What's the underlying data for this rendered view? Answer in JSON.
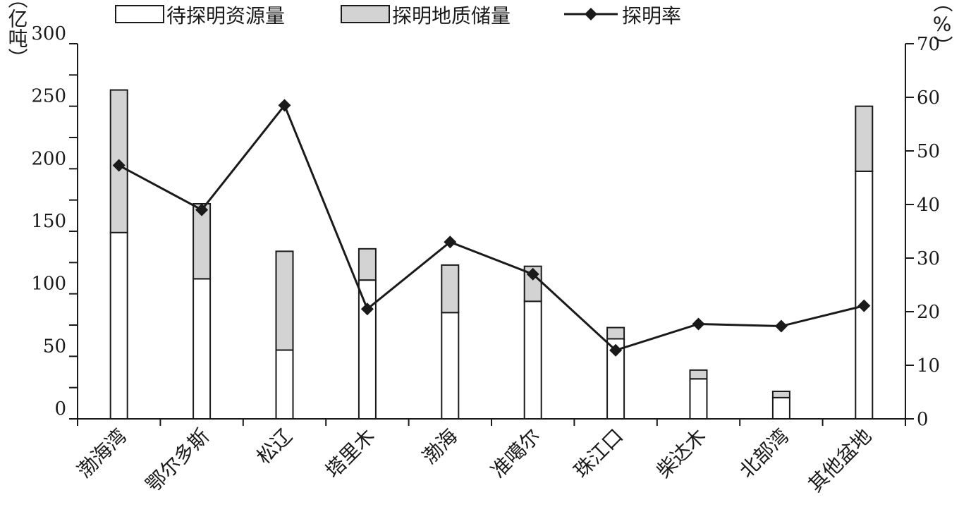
{
  "chart_data": {
    "type": "bar",
    "stacked": true,
    "categories": [
      "渤海湾",
      "鄂尔多斯",
      "松辽",
      "塔里木",
      "渤海",
      "准噶尔",
      "珠江口",
      "柴达木",
      "北部湾",
      "其他盆地"
    ],
    "series": [
      {
        "name": "待探明资源量",
        "kind": "bar",
        "axis": "left",
        "color": "#ffffff",
        "values": [
          149,
          112,
          55,
          111,
          85,
          94,
          64,
          32,
          17,
          198
        ]
      },
      {
        "name": "探明地质储量",
        "kind": "bar",
        "axis": "left",
        "color": "#d3d3d3",
        "values": [
          114,
          60,
          79,
          25,
          38,
          28,
          9,
          7,
          5,
          52
        ]
      },
      {
        "name": "探明率",
        "kind": "line",
        "axis": "right",
        "color": "#1a1a1a",
        "marker": "diamond",
        "values": [
          47.3,
          39.0,
          58.5,
          20.5,
          33.0,
          27.0,
          12.8,
          17.7,
          17.3,
          21.1
        ]
      }
    ],
    "y_left": {
      "label": "（亿吨）",
      "ticks": [
        "0",
        "50",
        "100",
        "150",
        "200",
        "250",
        "300"
      ],
      "ylim": [
        0,
        300
      ]
    },
    "y_right": {
      "label": "（%）",
      "ticks": [
        "0",
        "10",
        "20",
        "30",
        "40",
        "50",
        "60",
        "70"
      ],
      "ylim": [
        0,
        70
      ]
    },
    "legend": {
      "position": "top",
      "items": [
        "待探明资源量",
        "探明地质储量",
        "探明率"
      ]
    },
    "grid": false
  }
}
